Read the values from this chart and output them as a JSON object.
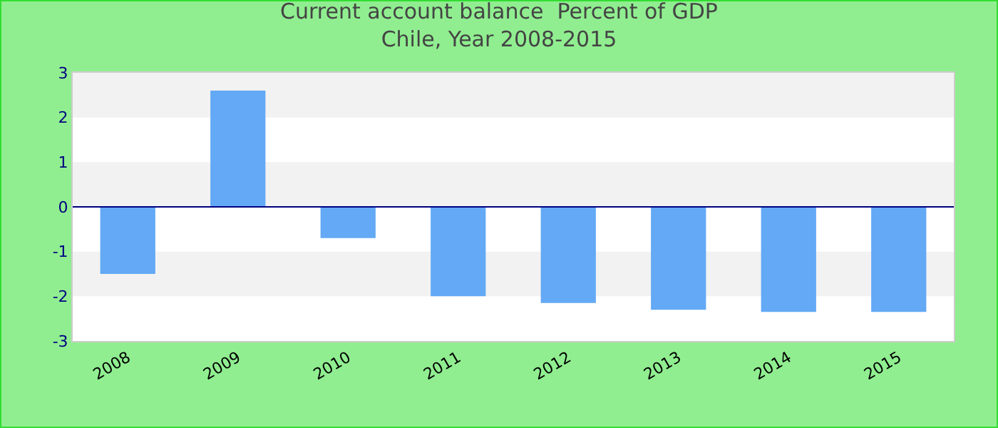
{
  "chart_data": {
    "type": "bar",
    "title": "Current account balance  Percent of GDP\nChile, Year 2008-2015",
    "categories": [
      "2008",
      "2009",
      "2010",
      "2011",
      "2012",
      "2013",
      "2014",
      "2015"
    ],
    "values": [
      -1.5,
      2.6,
      -0.7,
      -2.0,
      -2.15,
      -2.3,
      -2.35,
      -2.35
    ],
    "color": "#63a9f5",
    "ylim": [
      -3,
      3
    ],
    "yticks": [
      -3,
      -2,
      -1,
      0,
      1,
      2,
      3
    ],
    "bands": [
      {
        "axis": "y",
        "from": 2,
        "to": 3,
        "color": "#f2f2f2"
      },
      {
        "axis": "y",
        "from": 0,
        "to": 1,
        "color": "#f2f2f2"
      },
      {
        "axis": "y",
        "from": -2,
        "to": -1,
        "color": "#f2f2f2"
      }
    ],
    "ref_lines": [
      {
        "axis": "y",
        "value": 0,
        "color": "#000080"
      }
    ],
    "legend": false
  }
}
